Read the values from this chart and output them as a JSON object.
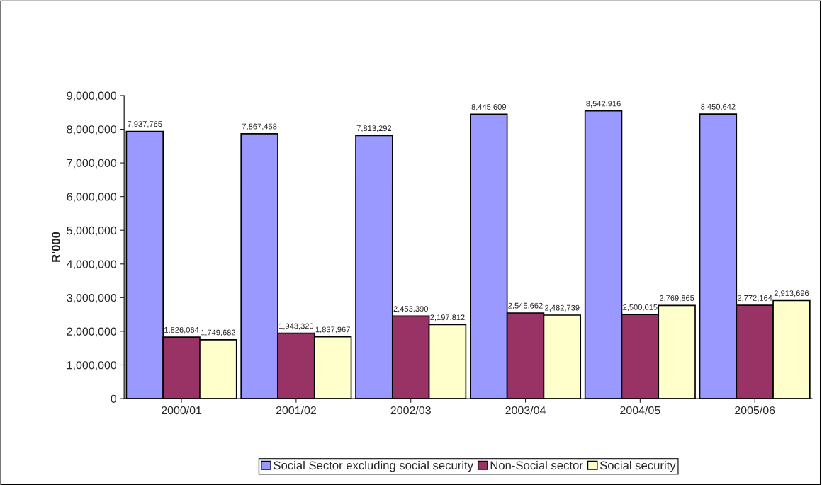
{
  "chart_data": {
    "type": "bar",
    "ylabel": "R'000",
    "categories": [
      "2000/01",
      "2001/02",
      "2002/03",
      "2003/04",
      "2004/05",
      "2005/06"
    ],
    "series": [
      {
        "name": "Social Sector excluding social security",
        "color": "#9999ff",
        "values": [
          7937765,
          7867458,
          7813292,
          8445609,
          8542916,
          8450642
        ],
        "value_labels": [
          "7,937,765",
          "7,867,458",
          "7,813,292",
          "8,445,609",
          "8,542,916",
          "8,450,642"
        ]
      },
      {
        "name": "Non-Social sector",
        "color": "#993366",
        "values": [
          1826064,
          1943320,
          2453390,
          2545662,
          2500015,
          2772164
        ],
        "value_labels": [
          "1,826,064",
          "1,943,320",
          "2,453,390",
          "2,545,662",
          "2,500,015",
          "2,772,164"
        ]
      },
      {
        "name": "Social security",
        "color": "#ffffcc",
        "values": [
          1749682,
          1837967,
          2197812,
          2482739,
          2769865,
          2913696
        ],
        "value_labels": [
          "1,749,682",
          "1,837,967",
          "2,197,812",
          "2,482,739",
          "2,769,865",
          "2,913,696"
        ]
      }
    ],
    "ylim": [
      0,
      9000000
    ],
    "yticks": [
      {
        "value": 0,
        "label": "0"
      },
      {
        "value": 1000000,
        "label": "1,000,000"
      },
      {
        "value": 2000000,
        "label": "2,000,000"
      },
      {
        "value": 3000000,
        "label": "3,000,000"
      },
      {
        "value": 4000000,
        "label": "4,000,000"
      },
      {
        "value": 5000000,
        "label": "5,000,000"
      },
      {
        "value": 6000000,
        "label": "6,000,000"
      },
      {
        "value": 7000000,
        "label": "7,000,000"
      },
      {
        "value": 8000000,
        "label": "8,000,000"
      },
      {
        "value": 9000000,
        "label": "9,000,000"
      }
    ],
    "grid": false,
    "legend": "bottom"
  }
}
